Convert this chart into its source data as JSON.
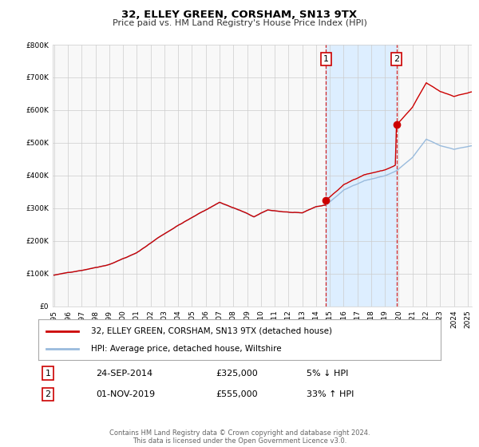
{
  "title": "32, ELLEY GREEN, CORSHAM, SN13 9TX",
  "subtitle": "Price paid vs. HM Land Registry's House Price Index (HPI)",
  "ylim": [
    0,
    800000
  ],
  "xlim_start": 1995.0,
  "xlim_end": 2025.3,
  "hpi_color": "#99bbdd",
  "price_color": "#cc0000",
  "marker1_date": 2014.73,
  "marker1_price": 325000,
  "marker1_label": "1",
  "marker2_date": 2019.83,
  "marker2_price": 555000,
  "marker2_label": "2",
  "shade_color": "#ddeeff",
  "vline_color": "#cc0000",
  "legend_line1": "32, ELLEY GREEN, CORSHAM, SN13 9TX (detached house)",
  "legend_line2": "HPI: Average price, detached house, Wiltshire",
  "footer": "Contains HM Land Registry data © Crown copyright and database right 2024.\nThis data is licensed under the Open Government Licence v3.0.",
  "background_color": "#ffffff",
  "plot_bg_color": "#f8f8f8"
}
